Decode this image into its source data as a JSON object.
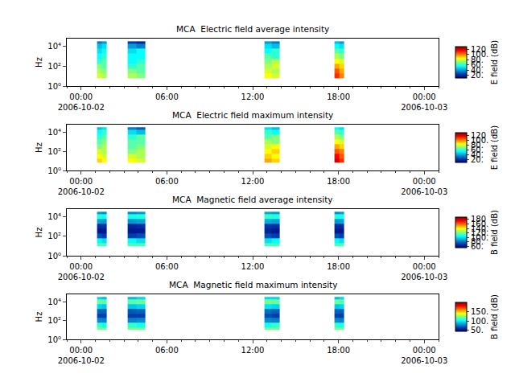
{
  "chart_data": [
    {
      "type": "heatmap",
      "title": "MCA  Electric field average intensity",
      "y_label": "Hz",
      "log": "y",
      "grid": false,
      "xlim": [
        "2006-10-01 23:00",
        "2006-10-03 01:00"
      ],
      "xticks": [
        {
          "value": "2006-10-02 00:00",
          "label": "00:00\n2006-10-02"
        },
        {
          "value": "2006-10-02 06:00",
          "label": "06:00"
        },
        {
          "value": "2006-10-02 12:00",
          "label": "12:00"
        },
        {
          "value": "2006-10-02 18:00",
          "label": "18:00"
        },
        {
          "value": "2006-10-03 00:00",
          "label": "00:00\n2006-10-03"
        }
      ],
      "ylim": [
        1,
        60000
      ],
      "yticks": [
        {
          "value": 1,
          "label": "10⁰"
        },
        {
          "value": 100,
          "label": "10²"
        },
        {
          "value": 10000,
          "label": "10⁴"
        }
      ],
      "x_edges": [
        "2006-10-02 01:07",
        "2006-10-02 01:28",
        "2006-10-02 01:48",
        "2006-10-02 03:15",
        "2006-10-02 03:52",
        "2006-10-02 04:30",
        "2006-10-02 12:48",
        "2006-10-02 13:20",
        "2006-10-02 13:52",
        "2006-10-02 17:42",
        "2006-10-02 18:03",
        "2006-10-02 18:25"
      ],
      "y_edges": [
        6,
        18,
        56,
        180,
        560,
        1800,
        5600,
        18000,
        32000
      ],
      "cells": [
        [
          80,
          75,
          null,
          75,
          70,
          null,
          85,
          80,
          null,
          110,
          100
        ],
        [
          75,
          70,
          null,
          70,
          65,
          null,
          80,
          75,
          null,
          105,
          95
        ],
        [
          70,
          65,
          null,
          60,
          65,
          null,
          75,
          80,
          null,
          95,
          90
        ],
        [
          60,
          65,
          null,
          55,
          60,
          null,
          70,
          75,
          null,
          85,
          80
        ],
        [
          55,
          60,
          null,
          55,
          55,
          null,
          65,
          60,
          null,
          75,
          70
        ],
        [
          50,
          55,
          null,
          50,
          55,
          null,
          55,
          60,
          null,
          65,
          60
        ],
        [
          45,
          50,
          null,
          40,
          35,
          null,
          50,
          45,
          null,
          55,
          50
        ],
        [
          35,
          40,
          null,
          25,
          20,
          null,
          40,
          35,
          null,
          45,
          40
        ]
      ],
      "colorbar": {
        "title": "E field (dB)",
        "range": [
          10,
          130
        ],
        "ticks": [
          {
            "value": 20,
            "label": "20."
          },
          {
            "value": 40,
            "label": "40."
          },
          {
            "value": 60,
            "label": "60."
          },
          {
            "value": 80,
            "label": "80."
          },
          {
            "value": 100,
            "label": "100."
          },
          120
        ]
      }
    },
    {
      "type": "heatmap",
      "title": "MCA  Electric field maximum intensity",
      "y_label": "Hz",
      "log": "y",
      "grid": false,
      "xlim": [
        "2006-10-01 23:00",
        "2006-10-03 01:00"
      ],
      "xticks": [
        {
          "value": "2006-10-02 00:00",
          "label": "00:00\n2006-10-02"
        },
        {
          "value": "2006-10-02 06:00",
          "label": "06:00"
        },
        {
          "value": "2006-10-02 12:00",
          "label": "12:00"
        },
        {
          "value": "2006-10-02 18:00",
          "label": "18:00"
        },
        {
          "value": "2006-10-03 00:00",
          "label": "00:00\n2006-10-03"
        }
      ],
      "ylim": [
        1,
        60000
      ],
      "yticks": [
        {
          "value": 1,
          "label": "10⁰"
        },
        {
          "value": 100,
          "label": "10²"
        },
        {
          "value": 10000,
          "label": "10⁴"
        }
      ],
      "x_edges": [
        "2006-10-02 01:07",
        "2006-10-02 01:28",
        "2006-10-02 01:48",
        "2006-10-02 03:15",
        "2006-10-02 03:52",
        "2006-10-02 04:30",
        "2006-10-02 12:48",
        "2006-10-02 13:20",
        "2006-10-02 13:52",
        "2006-10-02 17:42",
        "2006-10-02 18:03",
        "2006-10-02 18:25"
      ],
      "y_edges": [
        6,
        18,
        56,
        180,
        560,
        1800,
        5600,
        18000,
        32000
      ],
      "cells": [
        [
          90,
          85,
          null,
          85,
          80,
          null,
          95,
          90,
          null,
          120,
          110
        ],
        [
          85,
          80,
          null,
          80,
          75,
          null,
          90,
          85,
          null,
          115,
          105
        ],
        [
          80,
          75,
          null,
          70,
          75,
          null,
          85,
          90,
          null,
          105,
          100
        ],
        [
          70,
          75,
          null,
          65,
          70,
          null,
          80,
          85,
          null,
          95,
          90
        ],
        [
          65,
          70,
          null,
          65,
          65,
          null,
          75,
          70,
          null,
          85,
          80
        ],
        [
          60,
          65,
          null,
          60,
          65,
          null,
          65,
          70,
          null,
          75,
          70
        ],
        [
          55,
          60,
          null,
          50,
          45,
          null,
          60,
          55,
          null,
          65,
          60
        ],
        [
          45,
          50,
          null,
          35,
          30,
          null,
          50,
          45,
          null,
          55,
          50
        ]
      ],
      "colorbar": {
        "title": "E field (dB)",
        "range": [
          10,
          130
        ],
        "ticks": [
          {
            "value": 20,
            "label": "20."
          },
          {
            "value": 40,
            "label": "40."
          },
          {
            "value": 60,
            "label": "60."
          },
          {
            "value": 80,
            "label": "80."
          },
          {
            "value": 100,
            "label": "100."
          },
          120
        ]
      }
    },
    {
      "type": "heatmap",
      "title": "MCA  Magnetic field average intensity",
      "y_label": "Hz",
      "log": "y",
      "grid": false,
      "xlim": [
        "2006-10-01 23:00",
        "2006-10-03 01:00"
      ],
      "xticks": [
        {
          "value": "2006-10-02 00:00",
          "label": "00:00\n2006-10-02"
        },
        {
          "value": "2006-10-02 06:00",
          "label": "06:00"
        },
        {
          "value": "2006-10-02 12:00",
          "label": "12:00"
        },
        {
          "value": "2006-10-02 18:00",
          "label": "18:00"
        },
        {
          "value": "2006-10-03 00:00",
          "label": "00:00\n2006-10-03"
        }
      ],
      "ylim": [
        1,
        60000
      ],
      "yticks": [
        {
          "value": 1,
          "label": "10⁰"
        },
        {
          "value": 100,
          "label": "10²"
        },
        {
          "value": 10000,
          "label": "10⁴"
        }
      ],
      "x_edges": [
        "2006-10-02 01:07",
        "2006-10-02 01:28",
        "2006-10-02 01:48",
        "2006-10-02 03:15",
        "2006-10-02 03:52",
        "2006-10-02 04:30",
        "2006-10-02 12:48",
        "2006-10-02 13:20",
        "2006-10-02 13:52",
        "2006-10-02 17:42",
        "2006-10-02 18:03",
        "2006-10-02 18:25"
      ],
      "y_edges": [
        10,
        18,
        56,
        180,
        560,
        1800,
        5600,
        18000,
        32000
      ],
      "cells": [
        [
          115,
          115,
          null,
          115,
          115,
          null,
          115,
          115,
          null,
          115,
          115
        ],
        [
          105,
          100,
          null,
          105,
          100,
          null,
          100,
          105,
          null,
          105,
          100
        ],
        [
          75,
          72,
          null,
          72,
          75,
          null,
          75,
          72,
          null,
          75,
          72
        ],
        [
          62,
          62,
          null,
          62,
          62,
          null,
          65,
          62,
          null,
          62,
          62
        ],
        [
          68,
          68,
          null,
          65,
          68,
          null,
          70,
          68,
          null,
          68,
          68
        ],
        [
          90,
          88,
          null,
          88,
          90,
          null,
          92,
          90,
          null,
          88,
          90
        ],
        [
          110,
          108,
          null,
          108,
          110,
          null,
          112,
          110,
          null,
          110,
          108
        ],
        [
          88,
          85,
          null,
          85,
          88,
          null,
          90,
          88,
          null,
          85,
          88
        ]
      ],
      "colorbar": {
        "title": "B field (dB)",
        "range": [
          55,
          190
        ],
        "ticks": [
          {
            "value": 60,
            "label": "60."
          },
          {
            "value": 80,
            "label": "80."
          },
          {
            "value": 100,
            "label": "100."
          },
          {
            "value": 120,
            "label": "120."
          },
          {
            "value": 140,
            "label": "140."
          },
          {
            "value": 160,
            "label": "160."
          },
          180
        ]
      }
    },
    {
      "type": "heatmap",
      "title": "MCA  Magnetic field maximum intensity",
      "y_label": "Hz",
      "log": "y",
      "grid": false,
      "xlim": [
        "2006-10-01 23:00",
        "2006-10-03 01:00"
      ],
      "xticks": [
        {
          "value": "2006-10-02 00:00",
          "label": "00:00\n2006-10-02"
        },
        {
          "value": "2006-10-02 06:00",
          "label": "06:00"
        },
        {
          "value": "2006-10-02 12:00",
          "label": "12:00"
        },
        {
          "value": "2006-10-02 18:00",
          "label": "18:00"
        },
        {
          "value": "2006-10-03 00:00",
          "label": "00:00\n2006-10-03"
        }
      ],
      "ylim": [
        1,
        60000
      ],
      "yticks": [
        {
          "value": 1,
          "label": "10⁰"
        },
        {
          "value": 100,
          "label": "10²"
        },
        {
          "value": 10000,
          "label": "10⁴"
        }
      ],
      "x_edges": [
        "2006-10-02 01:07",
        "2006-10-02 01:28",
        "2006-10-02 01:48",
        "2006-10-02 03:15",
        "2006-10-02 03:52",
        "2006-10-02 04:30",
        "2006-10-02 12:48",
        "2006-10-02 13:20",
        "2006-10-02 13:52",
        "2006-10-02 17:42",
        "2006-10-02 18:03",
        "2006-10-02 18:25"
      ],
      "y_edges": [
        10,
        18,
        56,
        180,
        560,
        1800,
        5600,
        18000,
        32000
      ],
      "cells": [
        [
          120,
          120,
          null,
          120,
          120,
          null,
          120,
          120,
          null,
          120,
          120
        ],
        [
          110,
          105,
          null,
          110,
          105,
          null,
          105,
          110,
          null,
          110,
          105
        ],
        [
          80,
          78,
          null,
          78,
          80,
          null,
          80,
          78,
          null,
          80,
          78
        ],
        [
          65,
          65,
          null,
          65,
          65,
          null,
          68,
          65,
          null,
          65,
          65
        ],
        [
          72,
          72,
          null,
          70,
          72,
          null,
          75,
          72,
          null,
          72,
          72
        ],
        [
          95,
          92,
          null,
          92,
          95,
          null,
          98,
          95,
          null,
          92,
          95
        ],
        [
          118,
          115,
          null,
          115,
          118,
          null,
          120,
          118,
          null,
          118,
          115
        ],
        [
          95,
          90,
          null,
          90,
          95,
          null,
          95,
          95,
          null,
          90,
          95
        ]
      ],
      "colorbar": {
        "title": "B field (dB)",
        "range": [
          45,
          200
        ],
        "ticks": [
          {
            "value": 50,
            "label": "50."
          },
          {
            "value": 100,
            "label": "100."
          },
          {
            "value": 150,
            "label": "150."
          }
        ]
      }
    }
  ]
}
